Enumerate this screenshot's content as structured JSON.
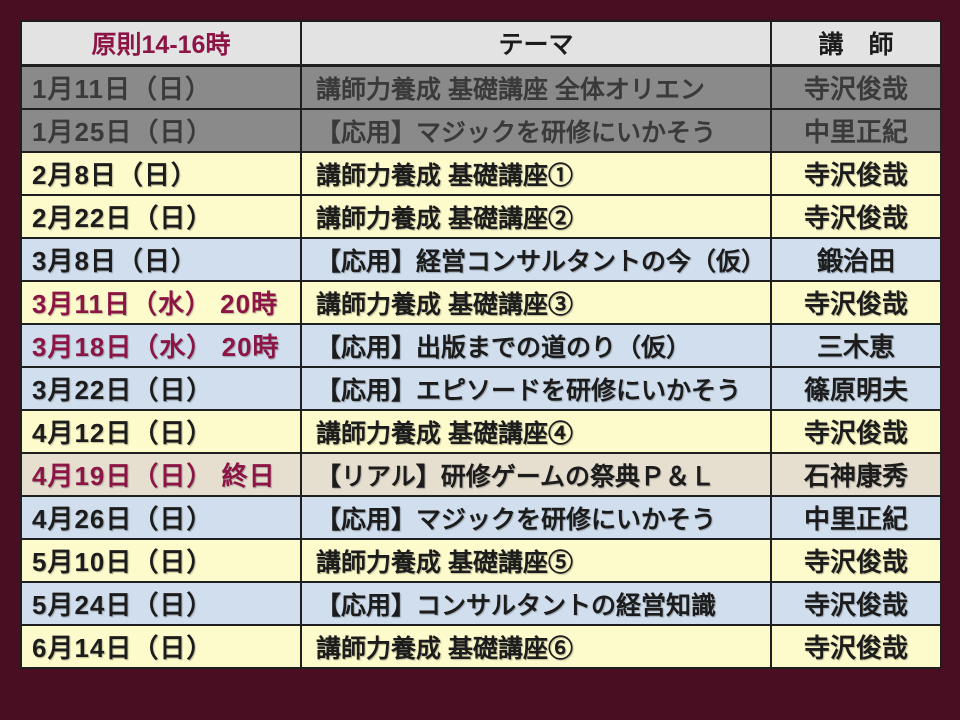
{
  "colors": {
    "bg": "#4A0E23",
    "header_bg": "#E3E3E3",
    "gray_row": "#8A8A8A",
    "yellow_row": "#FDFBCB",
    "blue_row": "#D0DEED",
    "beige_row": "#E6DFD0",
    "border": "#1F1F1F",
    "red_text": "#8C1545",
    "text": "#1C1C1C",
    "gray_row_text": "#3A3A3A"
  },
  "table": {
    "headers": [
      "原則14-16時",
      "テーマ",
      "講　師"
    ],
    "rows": [
      {
        "date": "1月11日（日）",
        "theme": "講師力養成 基礎講座 全体オリエン",
        "lecturer": "寺沢俊哉"
      },
      {
        "date": "1月25日（日）",
        "theme": "【応用】マジックを研修にいかそう",
        "lecturer": "中里正紀"
      },
      {
        "date": "2月8日（日）",
        "theme": "講師力養成 基礎講座①",
        "lecturer": "寺沢俊哉"
      },
      {
        "date": "2月22日（日）",
        "theme": "講師力養成 基礎講座②",
        "lecturer": "寺沢俊哉"
      },
      {
        "date": "3月8日（日）",
        "theme": "【応用】経営コンサルタントの今（仮）",
        "lecturer": "鍛治田"
      },
      {
        "date": "3月11日（水） 20時",
        "theme": "講師力養成 基礎講座③",
        "lecturer": "寺沢俊哉"
      },
      {
        "date": "3月18日（水） 20時",
        "theme": "【応用】出版までの道のり（仮）",
        "lecturer": "三木恵"
      },
      {
        "date": "3月22日（日）",
        "theme": "【応用】エピソードを研修にいかそう",
        "lecturer": "篠原明夫"
      },
      {
        "date": "4月12日（日）",
        "theme": "講師力養成 基礎講座④",
        "lecturer": "寺沢俊哉"
      },
      {
        "date": "4月19日（日） 終日",
        "theme": "【リアル】研修ゲームの祭典Ｐ＆Ｌ",
        "lecturer": "石神康秀"
      },
      {
        "date": "4月26日（日）",
        "theme": "【応用】マジックを研修にいかそう",
        "lecturer": "中里正紀"
      },
      {
        "date": "5月10日（日）",
        "theme": "講師力養成 基礎講座⑤",
        "lecturer": "寺沢俊哉"
      },
      {
        "date": "5月24日（日）",
        "theme": "【応用】コンサルタントの経営知識",
        "lecturer": "寺沢俊哉"
      },
      {
        "date": "6月14日（日）",
        "theme": "講師力養成 基礎講座⑥",
        "lecturer": "寺沢俊哉"
      }
    ]
  }
}
